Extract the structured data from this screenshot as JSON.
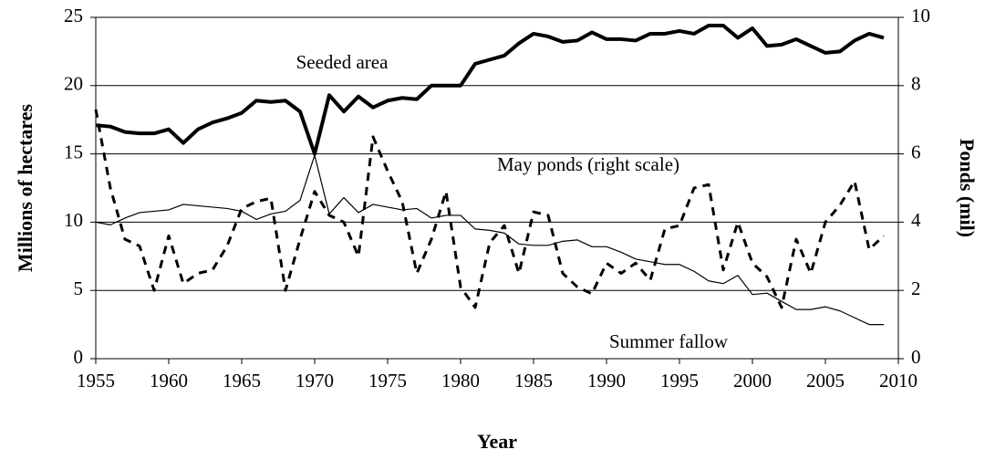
{
  "chart_data": {
    "type": "line",
    "xlabel": "Year",
    "ylabel": "Millions of hectares",
    "y2label": "Ponds (mil)",
    "x": [
      1955,
      1956,
      1957,
      1958,
      1959,
      1960,
      1961,
      1962,
      1963,
      1964,
      1965,
      1966,
      1967,
      1968,
      1969,
      1970,
      1971,
      1972,
      1973,
      1974,
      1975,
      1976,
      1977,
      1978,
      1979,
      1980,
      1981,
      1982,
      1983,
      1984,
      1985,
      1986,
      1987,
      1988,
      1989,
      1990,
      1991,
      1992,
      1993,
      1994,
      1995,
      1996,
      1997,
      1998,
      1999,
      2000,
      2001,
      2002,
      2003,
      2004,
      2005,
      2006,
      2007,
      2008,
      2009
    ],
    "series": [
      {
        "name": "Seeded area",
        "color": "#000000",
        "linewidth": 4,
        "linestyle": "solid",
        "values": [
          17.1,
          17.0,
          16.6,
          16.5,
          16.5,
          16.8,
          15.8,
          16.8,
          17.3,
          17.6,
          18.0,
          18.9,
          18.8,
          18.9,
          18.1,
          15.0,
          19.3,
          18.1,
          19.2,
          18.4,
          18.9,
          19.1,
          19.0,
          20.0,
          20.0,
          20.0,
          21.6,
          21.9,
          22.2,
          23.1,
          23.8,
          23.6,
          23.2,
          23.3,
          23.9,
          23.4,
          23.4,
          23.3,
          23.8,
          23.8,
          24.0,
          23.8,
          24.4,
          24.4,
          23.5,
          24.2,
          22.9,
          23.0,
          23.4,
          22.9,
          22.4,
          22.5,
          23.3,
          23.8,
          23.5
        ]
      },
      {
        "name": "May ponds (right scale)",
        "color": "#000000",
        "linewidth": 3,
        "linestyle": "dashed",
        "axis": "y2",
        "values": [
          7.3,
          5.0,
          3.5,
          3.3,
          2.0,
          3.6,
          2.2,
          2.5,
          2.6,
          3.3,
          4.4,
          4.6,
          4.7,
          2.0,
          3.5,
          4.9,
          4.2,
          4.0,
          3.0,
          6.5,
          5.5,
          4.6,
          2.5,
          3.5,
          4.9,
          2.1,
          1.5,
          3.4,
          3.9,
          2.5,
          4.3,
          4.2,
          2.5,
          2.1,
          1.9,
          2.8,
          2.5,
          2.8,
          2.3,
          3.8,
          3.9,
          5.0,
          5.1,
          2.6,
          4.0,
          2.8,
          2.4,
          1.5,
          3.5,
          2.5,
          4.0,
          4.5,
          5.2,
          3.2,
          3.6
        ]
      },
      {
        "name": "Summer fallow",
        "color": "#000000",
        "linewidth": 1.2,
        "linestyle": "solid",
        "values": [
          10.0,
          9.8,
          10.3,
          10.7,
          10.8,
          10.9,
          11.3,
          11.2,
          11.1,
          11.0,
          10.8,
          10.2,
          10.6,
          10.8,
          11.6,
          14.9,
          10.6,
          11.8,
          10.7,
          11.3,
          11.1,
          10.9,
          11.0,
          10.3,
          10.5,
          10.5,
          9.5,
          9.4,
          9.2,
          8.4,
          8.3,
          8.3,
          8.6,
          8.7,
          8.2,
          8.2,
          7.8,
          7.3,
          7.1,
          6.9,
          6.9,
          6.4,
          5.7,
          5.5,
          6.1,
          4.7,
          4.8,
          4.2,
          3.6,
          3.6,
          3.8,
          3.5,
          3.0,
          2.5,
          2.5
        ]
      }
    ],
    "xlim": [
      1955,
      2010
    ],
    "xticks": [
      1955,
      1960,
      1965,
      1970,
      1975,
      1980,
      1985,
      1990,
      1995,
      2000,
      2005,
      2010
    ],
    "ylim": [
      0,
      25
    ],
    "yticks": [
      0,
      5,
      10,
      15,
      20,
      25
    ],
    "y2lim": [
      0,
      10
    ],
    "y2ticks": [
      0,
      2,
      4,
      6,
      8,
      10
    ],
    "grid": true
  }
}
